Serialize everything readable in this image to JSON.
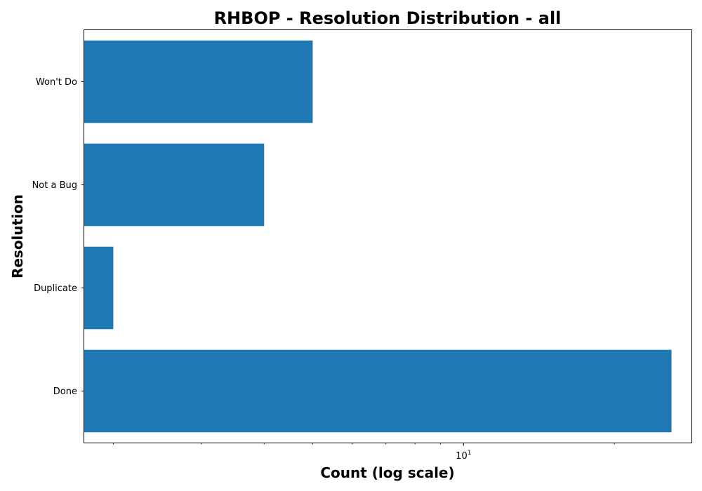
{
  "chart_data": {
    "type": "bar",
    "orientation": "horizontal",
    "title": "RHBOP - Resolution Distribution - all",
    "xlabel": "Count (log scale)",
    "ylabel": "Resolution",
    "x_scale": "log",
    "xlim": [
      1.75,
      28.5
    ],
    "categories": [
      "Done",
      "Duplicate",
      "Not a Bug",
      "Won't Do"
    ],
    "values": [
      26,
      2,
      4,
      5
    ],
    "xticks_major": [
      {
        "value": 10,
        "base": "10",
        "exponent": "1"
      }
    ],
    "xticks_minor": [
      2,
      3,
      4,
      5,
      6,
      7,
      8,
      9,
      20
    ],
    "bar_color": "#1f77b4",
    "grid": false,
    "legend": null
  }
}
